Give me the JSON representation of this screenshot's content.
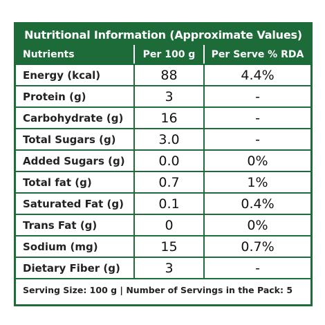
{
  "title": "Nutritional Information (Approximate Values)",
  "headers": [
    "Nutrients",
    "Per 100 g",
    "Per Serve % RDA"
  ],
  "rows": [
    {
      "name": "Energy (kcal)",
      "per100": "88",
      "rda": "4.4%"
    },
    {
      "name": "Protein (g)",
      "per100": "3",
      "rda": "-"
    },
    {
      "name": "Carbohydrate (g)",
      "per100": "16",
      "rda": "-"
    },
    {
      "name": "Total Sugars (g)",
      "per100": "3.0",
      "rda": "-"
    },
    {
      "name": "Added Sugars (g)",
      "per100": "0.0",
      "rda": "0%"
    },
    {
      "name": "Total fat (g)",
      "per100": "0.7",
      "rda": "1%"
    },
    {
      "name": "Saturated Fat (g)",
      "per100": "0.1",
      "rda": "0.4%"
    },
    {
      "name": "Trans Fat (g)",
      "per100": "0",
      "rda": "0%"
    },
    {
      "name": "Sodium (mg)",
      "per100": "15",
      "rda": "0.7%"
    },
    {
      "name": "Dietary Fiber (g)",
      "per100": "3",
      "rda": "-"
    }
  ],
  "footer": "Serving Size: 100 g | Number of Servings in the Pack: 5",
  "colors": {
    "brand_green": "#1e6b3a"
  }
}
